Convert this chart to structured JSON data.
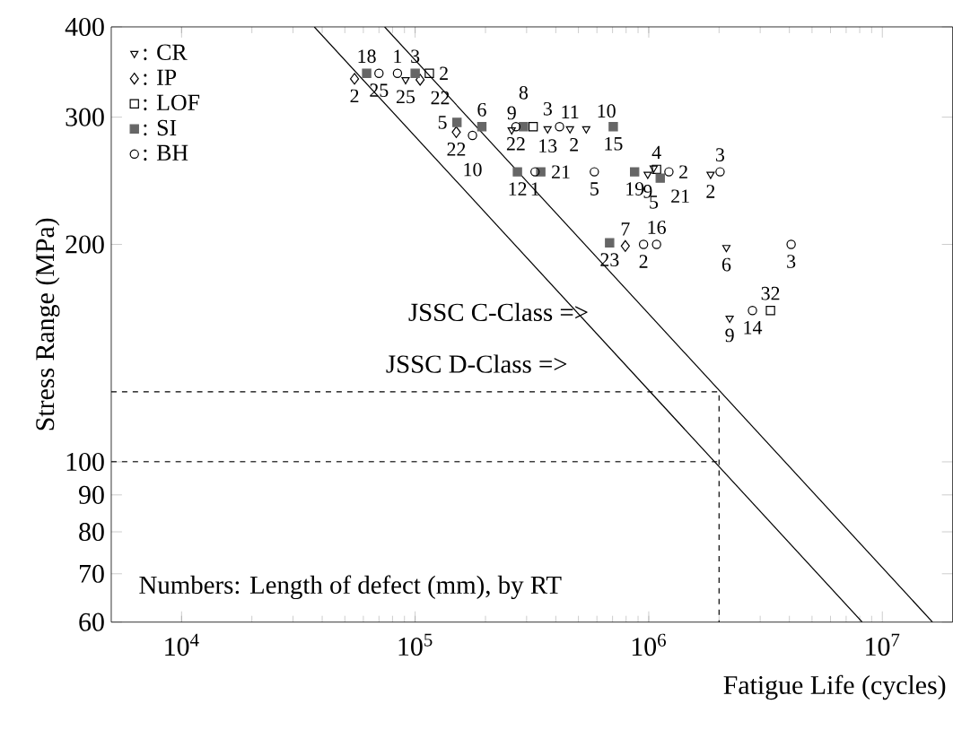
{
  "chart_data": {
    "type": "scatter",
    "xlabel": "Fatigue Life (cycles)",
    "ylabel": "Stress Range (MPa)",
    "log": "xy",
    "legend": "top left",
    "grid": false,
    "xlim": [
      5000,
      20000000
    ],
    "ylim": [
      60,
      400
    ],
    "xticks": [
      {
        "value": 10000,
        "label": "10$^{4}$"
      },
      {
        "value": 100000,
        "label": "10$^{5}$"
      },
      {
        "value": 1000000,
        "label": "10$^{6}$"
      },
      {
        "value": 10000000,
        "label": "10$^{7}$"
      }
    ],
    "yticks": [
      60,
      70,
      80,
      90,
      100,
      200,
      300,
      400
    ],
    "series": [
      {
        "name": ": CR",
        "marker": "triangle",
        "color": "#000000",
        "x": [
          91000,
          259000,
          369000,
          460000,
          540000,
          990000,
          1050000,
          1840000,
          2150000,
          2220000
        ],
        "values": [
          338,
          288,
          289,
          289,
          289,
          250,
          255,
          250,
          198,
          158
        ]
      },
      {
        "name": ": IP",
        "marker": "diamond",
        "color": "#000000",
        "x": [
          55000,
          105000,
          150000,
          794000
        ],
        "values": [
          339,
          338,
          286,
          199
        ]
      },
      {
        "name": ": LOF",
        "marker": "square",
        "color": "#000000",
        "x": [
          115000,
          320000,
          1080000,
          3320000
        ],
        "values": [
          345,
          291,
          254,
          162
        ]
      },
      {
        "name": ": SI",
        "marker": "square",
        "color": "#666666",
        "x": [
          62000,
          100000,
          151000,
          193000,
          291000,
          705000,
          274000,
          345000,
          870000,
          1120000,
          680000
        ],
        "values": [
          345,
          345,
          295,
          291,
          291,
          291,
          252,
          252,
          252,
          247,
          201
        ]
      },
      {
        "name": ": BH",
        "marker": "circle",
        "color": "#000000",
        "x": [
          70000,
          84000,
          176000,
          270000,
          415000,
          326000,
          585000,
          1220000,
          2020000,
          950000,
          1080000,
          4070000,
          2780000
        ],
        "values": [
          345,
          345,
          283,
          291,
          291,
          252,
          252,
          252,
          252,
          200,
          200,
          200,
          162
        ]
      },
      {
        "type": "line",
        "line_style": "solid",
        "color": "#000000",
        "x": [
          74000,
          16400000
        ],
        "values": [
          400,
          60
        ]
      },
      {
        "type": "line",
        "line_style": "solid",
        "color": "#000000",
        "x": [
          37000,
          8200000
        ],
        "values": [
          400,
          60
        ]
      },
      {
        "type": "line",
        "line_style": "dashed",
        "color": "#000000",
        "x": [
          5000,
          2000000,
          2000000
        ],
        "values": [
          125,
          125,
          60
        ]
      },
      {
        "type": "line",
        "line_style": "dashed",
        "color": "#000000",
        "x": [
          5000,
          2000000
        ],
        "values": [
          100,
          100
        ]
      }
    ],
    "annotations": [
      "JSSC C-Class =>",
      "JSSC D-Class =>",
      "Numbers: Length of defect (mm), by RT",
      {
        "text": "18",
        "x": 62000,
        "y": 345
      },
      {
        "text": "1",
        "x": 84000,
        "y": 345
      },
      {
        "text": "3",
        "x": 100000,
        "y": 345
      },
      {
        "text": "2",
        "x": 115000,
        "y": 345
      },
      {
        "text": "2",
        "x": 55000,
        "y": 339
      },
      {
        "text": "25",
        "x": 70000,
        "y": 345
      },
      {
        "text": "25",
        "x": 91000,
        "y": 338
      },
      {
        "text": "22",
        "x": 105000,
        "y": 338
      },
      {
        "text": "5",
        "x": 151000,
        "y": 295
      },
      {
        "text": "6",
        "x": 193000,
        "y": 291
      },
      {
        "text": "22",
        "x": 270000,
        "y": 291
      },
      {
        "text": "13",
        "x": 369000,
        "y": 289
      },
      {
        "text": "11",
        "x": 460000,
        "y": 289
      },
      {
        "text": "15",
        "x": 705000,
        "y": 291
      },
      {
        "text": "22",
        "x": 150000,
        "y": 286
      },
      {
        "text": "10",
        "x": 176000,
        "y": 283
      },
      {
        "text": "9",
        "x": 259000,
        "y": 288
      },
      {
        "text": "8",
        "x": 291000,
        "y": 291
      },
      {
        "text": "3",
        "x": 320000,
        "y": 291
      },
      {
        "text": "2",
        "x": 415000,
        "y": 291
      },
      {
        "text": "10",
        "x": 540000,
        "y": 289
      },
      {
        "text": "1",
        "x": 326000,
        "y": 252
      },
      {
        "text": "4",
        "x": 1080000,
        "y": 254
      },
      {
        "text": "5",
        "x": 1050000,
        "y": 255
      },
      {
        "text": "12",
        "x": 274000,
        "y": 252
      },
      {
        "text": "21",
        "x": 345000,
        "y": 252
      },
      {
        "text": "5",
        "x": 585000,
        "y": 252
      },
      {
        "text": "19",
        "x": 870000,
        "y": 252
      },
      {
        "text": "9",
        "x": 990000,
        "y": 250
      },
      {
        "text": "21",
        "x": 1120000,
        "y": 247
      },
      {
        "text": "2",
        "x": 1220000,
        "y": 252
      },
      {
        "text": "2",
        "x": 1840000,
        "y": 250
      },
      {
        "text": "3",
        "x": 2020000,
        "y": 252
      },
      {
        "text": "23",
        "x": 680000,
        "y": 201
      },
      {
        "text": "7",
        "x": 794000,
        "y": 199
      },
      {
        "text": "2",
        "x": 950000,
        "y": 200
      },
      {
        "text": "16",
        "x": 1080000,
        "y": 200
      },
      {
        "text": "6",
        "x": 2150000,
        "y": 198
      },
      {
        "text": "3",
        "x": 4070000,
        "y": 200
      },
      {
        "text": "9",
        "x": 2220000,
        "y": 158
      },
      {
        "text": "14",
        "x": 2780000,
        "y": 162
      },
      {
        "text": "32",
        "x": 3320000,
        "y": 162
      }
    ]
  }
}
